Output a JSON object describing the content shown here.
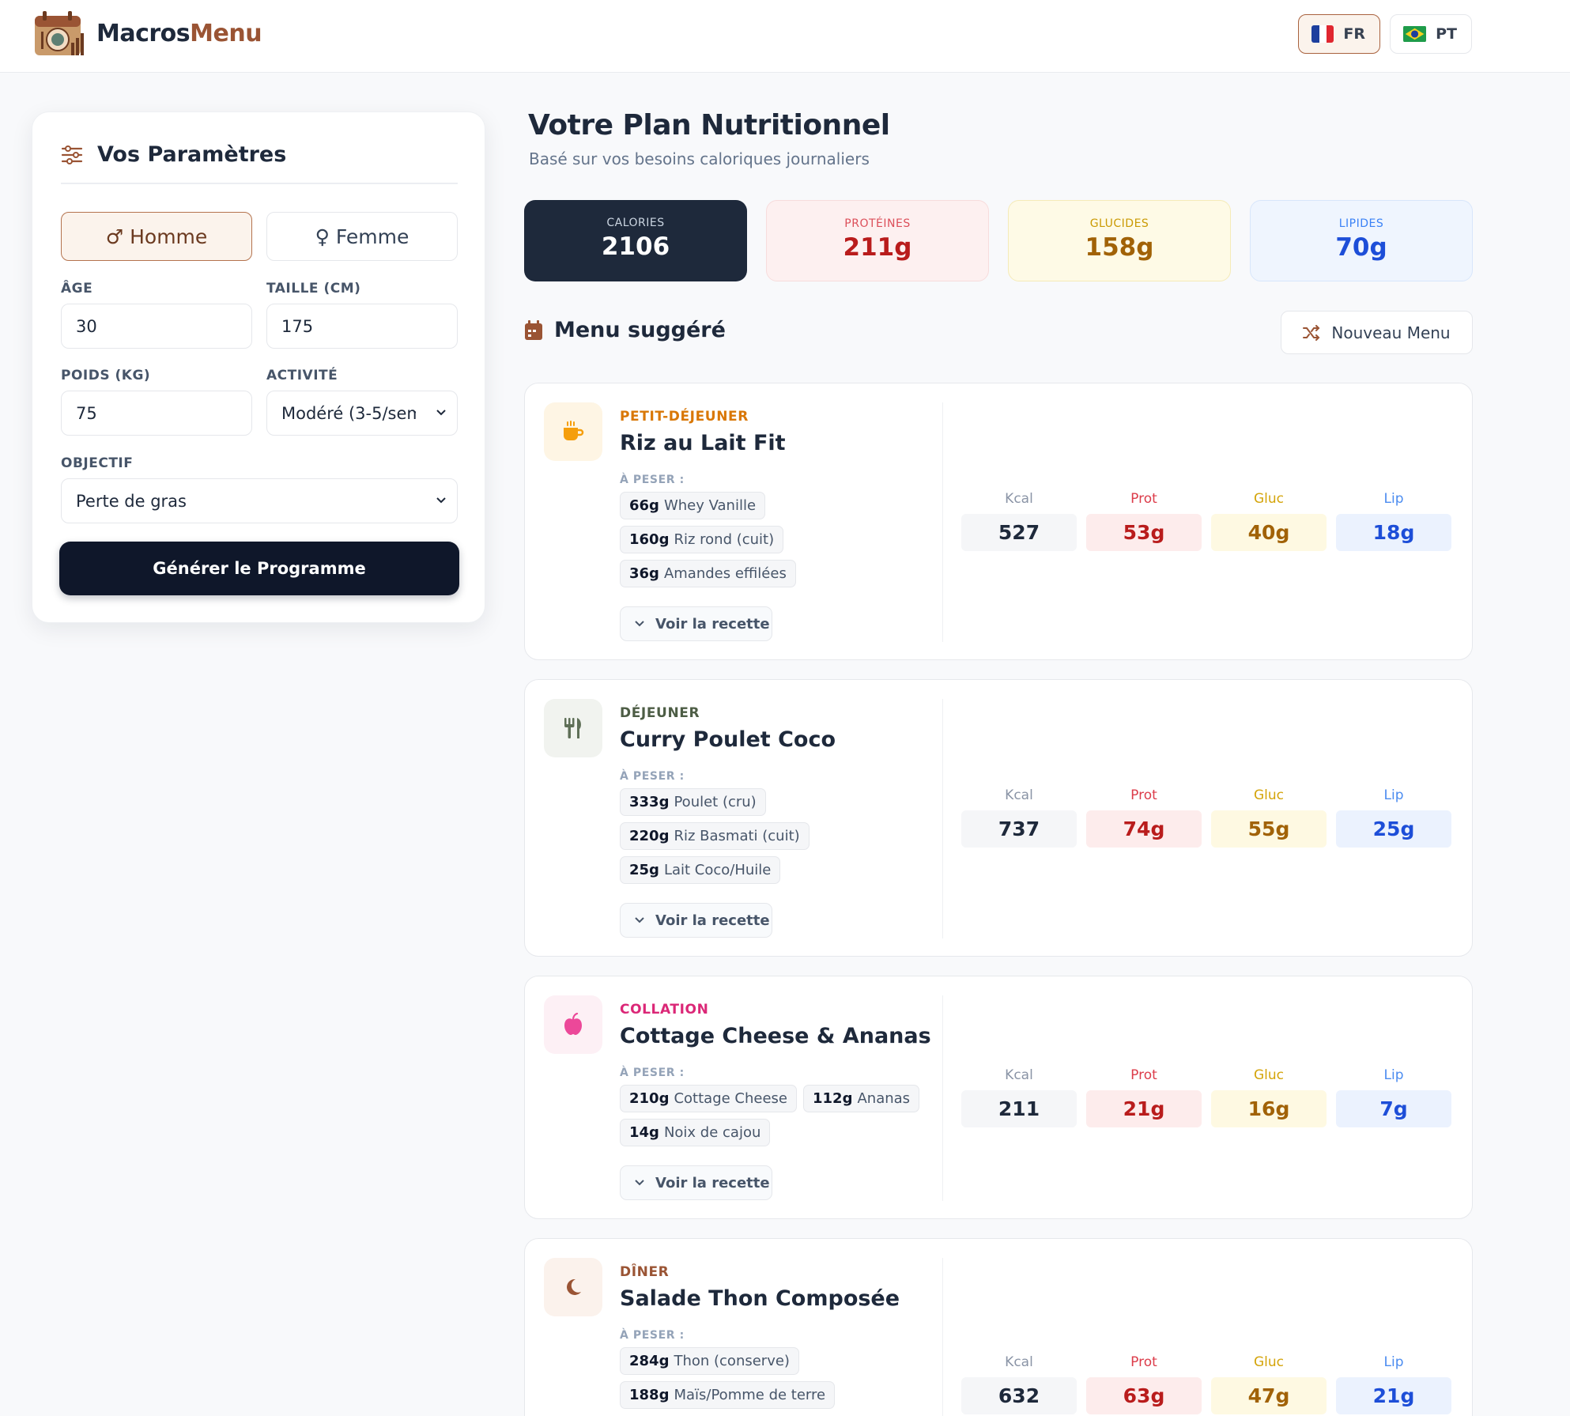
{
  "brand": {
    "name_part1": "Macros",
    "name_part2": "Menu",
    "logo_icon": "calendar-plate-logo"
  },
  "languages": [
    {
      "code": "FR",
      "flag": "france-flag",
      "active": true
    },
    {
      "code": "PT",
      "flag": "brazil-flag",
      "active": false
    }
  ],
  "params": {
    "title": "Vos Paramètres",
    "title_icon": "sliders-icon",
    "gender": {
      "male": "Homme",
      "female": "Femme",
      "selected": "Homme"
    },
    "age": {
      "label": "ÂGE",
      "value": "30"
    },
    "height": {
      "label": "TAILLE (CM)",
      "value": "175"
    },
    "weight": {
      "label": "POIDS (KG)",
      "value": "75"
    },
    "activity": {
      "label": "ACTIVITÉ",
      "value": "Modéré (3-5/sem"
    },
    "goal": {
      "label": "OBJECTIF",
      "value": "Perte de gras"
    },
    "generate_label": "Générer le Programme"
  },
  "plan": {
    "title": "Votre Plan Nutritionnel",
    "subtitle": "Basé sur vos besoins caloriques journaliers",
    "totals": {
      "calories": {
        "label": "CALORIES",
        "value": "2106"
      },
      "protein": {
        "label": "PROTÉINES",
        "value": "211g"
      },
      "carbs": {
        "label": "GLUCIDES",
        "value": "158g"
      },
      "fat": {
        "label": "LIPIDES",
        "value": "70g"
      }
    }
  },
  "menu": {
    "title": "Menu suggéré",
    "title_icon": "calendar-icon",
    "new_menu_label": "Nouveau Menu",
    "new_menu_icon": "shuffle-icon",
    "weigh_label": "À PESER :",
    "recipe_label": "Voir la recette",
    "col_labels": {
      "kcal": "Kcal",
      "prot": "Prot",
      "gluc": "Gluc",
      "lip": "Lip"
    },
    "meals": [
      {
        "category": "PETIT-DÉJEUNER",
        "icon": "coffee-icon",
        "accent": "#d97706",
        "name": "Riz au Lait Fit",
        "items": [
          {
            "qty": "66g",
            "food": "Whey Vanille"
          },
          {
            "qty": "160g",
            "food": "Riz rond (cuit)"
          },
          {
            "qty": "36g",
            "food": "Amandes effilées"
          }
        ],
        "kcal": "527",
        "prot": "53g",
        "gluc": "40g",
        "lip": "18g"
      },
      {
        "category": "DÉJEUNER",
        "icon": "utensils-icon",
        "accent": "#4d5d45",
        "name": "Curry Poulet Coco",
        "items": [
          {
            "qty": "333g",
            "food": "Poulet (cru)"
          },
          {
            "qty": "220g",
            "food": "Riz Basmati (cuit)"
          },
          {
            "qty": "25g",
            "food": "Lait Coco/Huile"
          }
        ],
        "kcal": "737",
        "prot": "74g",
        "gluc": "55g",
        "lip": "25g"
      },
      {
        "category": "COLLATION",
        "icon": "apple-icon",
        "accent": "#db2777",
        "name": "Cottage Cheese & Ananas",
        "items": [
          {
            "qty": "210g",
            "food": "Cottage Cheese"
          },
          {
            "qty": "112g",
            "food": "Ananas"
          },
          {
            "qty": "14g",
            "food": "Noix de cajou"
          }
        ],
        "kcal": "211",
        "prot": "21g",
        "gluc": "16g",
        "lip": "7g"
      },
      {
        "category": "DÎNER",
        "icon": "moon-icon",
        "accent": "#9a5434",
        "name": "Salade Thon Composée",
        "items": [
          {
            "qty": "284g",
            "food": "Thon (conserve)"
          },
          {
            "qty": "188g",
            "food": "Maïs/Pomme de terre"
          }
        ],
        "kcal": "632",
        "prot": "63g",
        "gluc": "47g",
        "lip": "21g"
      }
    ]
  }
}
